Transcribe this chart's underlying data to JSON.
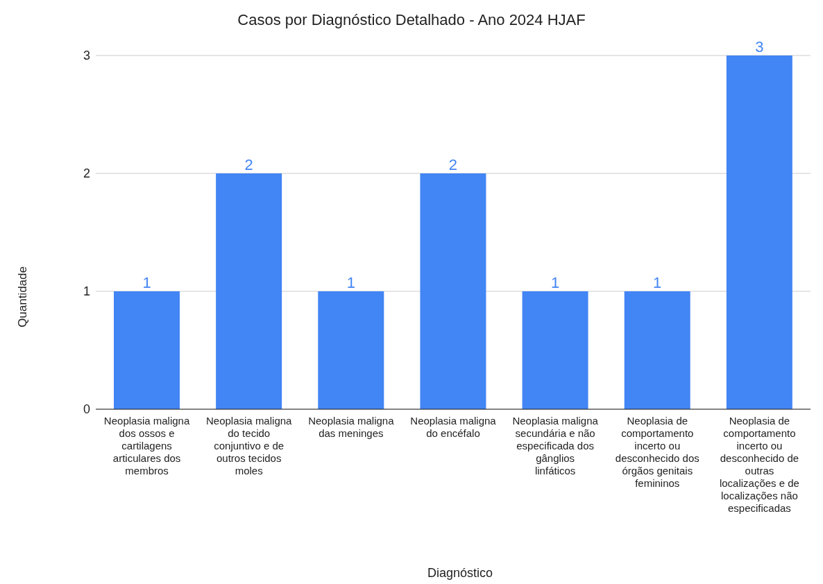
{
  "chart_data": {
    "type": "bar",
    "title": "Casos por Diagnóstico Detalhado - Ano 2024 HJAF",
    "xlabel": "Diagnóstico",
    "ylabel": "Quantidade",
    "categories": [
      "Neoplasia maligna dos ossos e cartilagens articulares dos membros",
      "Neoplasia maligna do tecido conjuntivo e de outros tecidos moles",
      "Neoplasia maligna das meninges",
      "Neoplasia maligna do encéfalo",
      "Neoplasia maligna secundária e não especificada dos gânglios linfáticos",
      "Neoplasia de comportamento incerto ou desconhecido dos órgãos genitais femininos",
      "Neoplasia de comportamento incerto ou desconhecido de outras localizações e de localizações não especificadas"
    ],
    "values": [
      1,
      2,
      1,
      2,
      1,
      1,
      3
    ],
    "color": "#4285f4",
    "ylim": [
      0,
      3
    ],
    "yticks": [
      0,
      1,
      2,
      3
    ],
    "grid": "y",
    "data_labels": true
  }
}
